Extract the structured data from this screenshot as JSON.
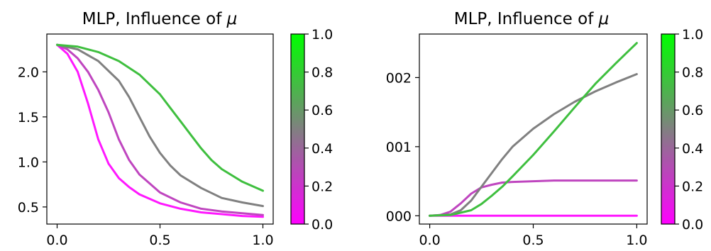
{
  "chart_data": [
    {
      "type": "line",
      "title": "MLP, Influence of μ",
      "title_prefix": "MLP, Influence of ",
      "title_symbol": "μ",
      "xlabel": "",
      "ylabel": "",
      "xlim": [
        -0.05,
        1.05
      ],
      "ylim": [
        0.31,
        2.42
      ],
      "xticks": [
        0.0,
        0.5,
        1.0
      ],
      "xtick_labels": [
        "0.0",
        "0.5",
        "1.0"
      ],
      "yticks": [
        0.5,
        1.0,
        1.5,
        2.0
      ],
      "ytick_labels": [
        "0.5",
        "1.0",
        "1.5",
        "2.0"
      ],
      "colormap": {
        "low": "#ff00ff",
        "mid": "#808080",
        "high": "#00ff00"
      },
      "series": [
        {
          "mu": 0.0,
          "color": "#ff18ff",
          "x": [
            0.0,
            0.05,
            0.1,
            0.15,
            0.2,
            0.25,
            0.3,
            0.35,
            0.4,
            0.5,
            0.6,
            0.7,
            0.8,
            0.9,
            1.0
          ],
          "y": [
            2.3,
            2.2,
            2.0,
            1.65,
            1.25,
            0.98,
            0.82,
            0.72,
            0.64,
            0.54,
            0.48,
            0.44,
            0.42,
            0.4,
            0.39
          ]
        },
        {
          "mu": 0.33,
          "color": "#bf46bf",
          "x": [
            0.0,
            0.05,
            0.1,
            0.15,
            0.2,
            0.25,
            0.3,
            0.35,
            0.4,
            0.5,
            0.6,
            0.7,
            0.8,
            0.9,
            1.0
          ],
          "y": [
            2.3,
            2.25,
            2.15,
            2.0,
            1.8,
            1.55,
            1.25,
            1.02,
            0.86,
            0.66,
            0.55,
            0.48,
            0.45,
            0.43,
            0.41
          ]
        },
        {
          "mu": 0.67,
          "color": "#808080",
          "x": [
            0.0,
            0.1,
            0.2,
            0.3,
            0.35,
            0.4,
            0.45,
            0.5,
            0.55,
            0.6,
            0.7,
            0.8,
            0.9,
            1.0
          ],
          "y": [
            2.3,
            2.25,
            2.12,
            1.9,
            1.72,
            1.5,
            1.28,
            1.1,
            0.96,
            0.85,
            0.71,
            0.6,
            0.55,
            0.51
          ]
        },
        {
          "mu": 1.0,
          "color": "#3fbf3f",
          "x": [
            0.0,
            0.1,
            0.2,
            0.3,
            0.4,
            0.5,
            0.55,
            0.6,
            0.65,
            0.7,
            0.75,
            0.8,
            0.9,
            1.0
          ],
          "y": [
            2.3,
            2.28,
            2.22,
            2.12,
            1.97,
            1.75,
            1.6,
            1.45,
            1.3,
            1.15,
            1.02,
            0.92,
            0.78,
            0.68
          ]
        }
      ]
    },
    {
      "type": "line",
      "title": "MLP, Influence of μ",
      "title_prefix": "MLP, Influence of ",
      "title_symbol": "μ",
      "xlabel": "",
      "ylabel": "",
      "xlim": [
        -0.05,
        1.05
      ],
      "ylim": [
        -0.00012,
        0.00263
      ],
      "xticks": [
        0.0,
        0.5,
        1.0
      ],
      "xtick_labels": [
        "0.0",
        "0.5",
        "1.0"
      ],
      "yticks": [
        0.0,
        0.001,
        0.002
      ],
      "ytick_labels": [
        "000",
        "001",
        "002"
      ],
      "colormap": {
        "low": "#ff00ff",
        "mid": "#808080",
        "high": "#00ff00"
      },
      "series": [
        {
          "mu": 0.0,
          "color": "#ff18ff",
          "x": [
            0.0,
            1.0
          ],
          "y": [
            0.0,
            0.0
          ]
        },
        {
          "mu": 0.33,
          "color": "#bf46bf",
          "x": [
            0.0,
            0.05,
            0.1,
            0.15,
            0.2,
            0.25,
            0.3,
            0.35,
            0.4,
            0.5,
            0.6,
            0.7,
            0.8,
            1.0
          ],
          "y": [
            0.0,
            1e-05,
            6e-05,
            0.00018,
            0.00032,
            0.00041,
            0.00045,
            0.00048,
            0.00049,
            0.0005,
            0.00051,
            0.00051,
            0.00051,
            0.00051
          ]
        },
        {
          "mu": 0.67,
          "color": "#808080",
          "x": [
            0.0,
            0.1,
            0.15,
            0.2,
            0.25,
            0.3,
            0.35,
            0.4,
            0.5,
            0.6,
            0.7,
            0.8,
            0.9,
            1.0
          ],
          "y": [
            0.0,
            2e-05,
            8e-05,
            0.00022,
            0.00042,
            0.00062,
            0.00082,
            0.001,
            0.00126,
            0.00147,
            0.00165,
            0.0018,
            0.00193,
            0.00205
          ]
        },
        {
          "mu": 1.0,
          "color": "#3fbf3f",
          "x": [
            0.0,
            0.1,
            0.2,
            0.25,
            0.3,
            0.35,
            0.4,
            0.5,
            0.6,
            0.7,
            0.8,
            0.9,
            1.0
          ],
          "y": [
            0.0,
            1e-05,
            8e-05,
            0.00017,
            0.00029,
            0.00042,
            0.00057,
            0.00088,
            0.00122,
            0.00157,
            0.00191,
            0.00221,
            0.0025
          ]
        }
      ]
    }
  ],
  "colorbars": [
    {
      "ticks": [
        0.0,
        0.2,
        0.4,
        0.6,
        0.8,
        1.0
      ],
      "tick_labels": [
        "0.0",
        "0.2",
        "0.4",
        "0.6",
        "0.8",
        "1.0"
      ]
    },
    {
      "ticks": [
        0.0,
        0.2,
        0.4,
        0.6,
        0.8,
        1.0
      ],
      "tick_labels": [
        "0.0",
        "0.2",
        "0.4",
        "0.6",
        "0.8",
        "1.0"
      ]
    }
  ]
}
